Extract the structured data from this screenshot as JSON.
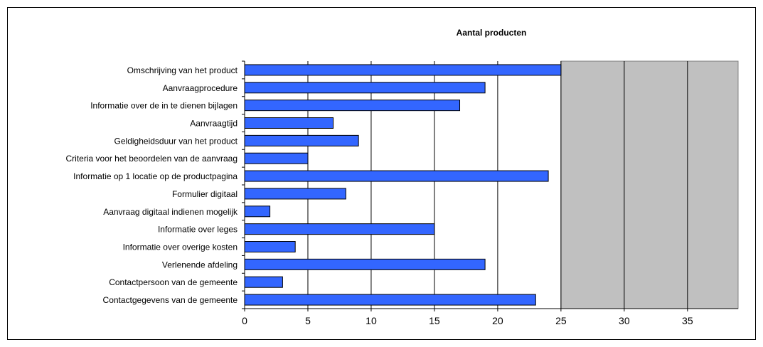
{
  "chart_data": {
    "type": "bar",
    "orientation": "horizontal",
    "title": "Aantal producten",
    "xlabel": "",
    "ylabel": "",
    "categories": [
      "Omschrijving van het product",
      "Aanvraagprocedure",
      "Informatie over de in te dienen bijlagen",
      "Aanvraagtijd",
      "Geldigheidsduur van het product",
      "Criteria voor het beoordelen van de aanvraag",
      "Informatie op 1 locatie op de productpagina",
      "Formulier digitaal",
      "Aanvraag digitaal indienen mogelijk",
      "Informatie over leges",
      "Informatie over overige kosten",
      "Verlenende afdeling",
      "Contactpersoon van de gemeente",
      "Contactgegevens van de gemeente"
    ],
    "values": [
      25,
      19,
      17,
      7,
      9,
      5,
      24,
      8,
      2,
      15,
      4,
      19,
      3,
      23
    ],
    "xlim": [
      0,
      39
    ],
    "xticks": [
      0,
      5,
      10,
      15,
      20,
      25,
      30,
      35
    ],
    "grid": true,
    "legend": "none",
    "colors": {
      "bar": "#3366ff",
      "plot_background": "#c0c0c0",
      "grid": "#000000"
    }
  }
}
